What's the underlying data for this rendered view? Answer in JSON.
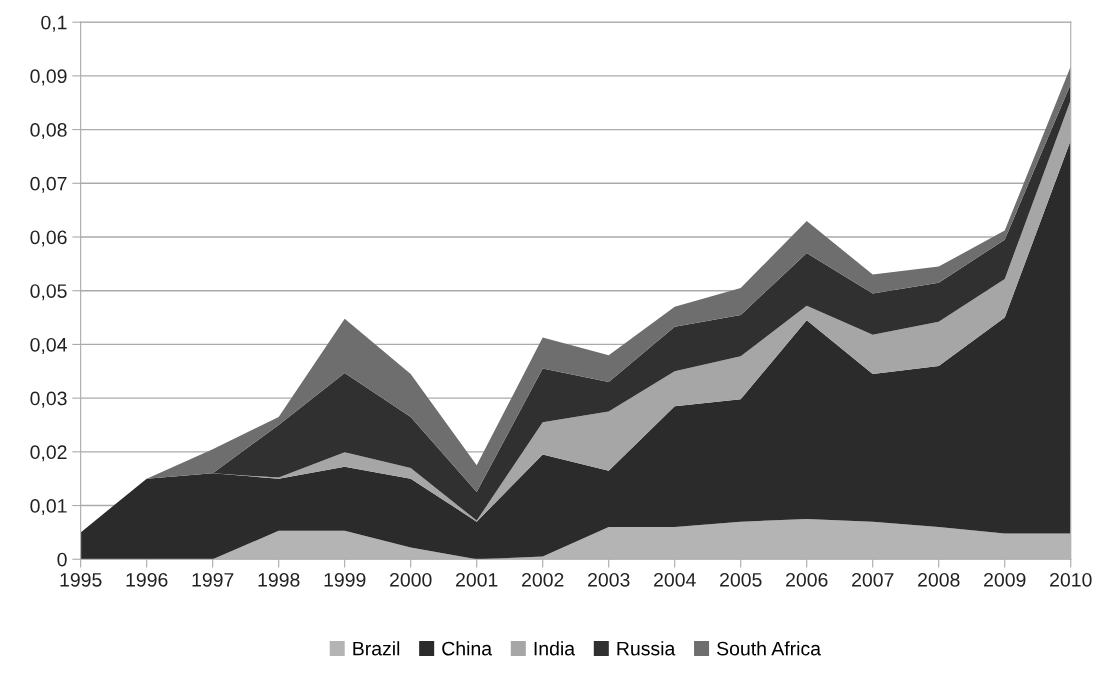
{
  "chart_data": {
    "type": "area",
    "stacked": true,
    "categories": [
      "1995",
      "1996",
      "1997",
      "1998",
      "1999",
      "2000",
      "2001",
      "2002",
      "2003",
      "2004",
      "2005",
      "2006",
      "2007",
      "2008",
      "2009",
      "2010"
    ],
    "series": [
      {
        "name": "Brazil",
        "color": "#b4b4b4",
        "values": [
          0,
          0,
          0,
          0.0053,
          0.0053,
          0.0022,
          0,
          0.0005,
          0.006,
          0.006,
          0.007,
          0.0075,
          0.007,
          0.006,
          0.0048,
          0.0048
        ]
      },
      {
        "name": "China",
        "color": "#2b2b2b",
        "values": [
          0.005,
          0.015,
          0.016,
          0.0097,
          0.0119,
          0.0128,
          0.007,
          0.019,
          0.0105,
          0.0225,
          0.0228,
          0.037,
          0.0275,
          0.03,
          0.0402,
          0.0732
        ]
      },
      {
        "name": "India",
        "color": "#a6a6a6",
        "values": [
          0,
          0,
          0,
          0.0002,
          0.0027,
          0.002,
          0.0002,
          0.006,
          0.011,
          0.0065,
          0.008,
          0.0027,
          0.0073,
          0.0082,
          0.0072,
          0.0075
        ]
      },
      {
        "name": "Russia",
        "color": "#303030",
        "values": [
          0,
          0,
          0,
          0.0098,
          0.0148,
          0.0095,
          0.0053,
          0.01,
          0.0055,
          0.0083,
          0.0077,
          0.0098,
          0.0077,
          0.0073,
          0.0073,
          0.003
        ]
      },
      {
        "name": "South Africa",
        "color": "#6e6e6e",
        "values": [
          0,
          0,
          0.0045,
          0.0015,
          0.0101,
          0.008,
          0.005,
          0.0058,
          0.005,
          0.0037,
          0.005,
          0.006,
          0.0035,
          0.003,
          0.0017,
          0.0033
        ]
      }
    ],
    "ylim": [
      0,
      0.1
    ],
    "yticks": [
      {
        "value": 0,
        "label": "0"
      },
      {
        "value": 0.01,
        "label": "0,01"
      },
      {
        "value": 0.02,
        "label": "0,02"
      },
      {
        "value": 0.03,
        "label": "0,03"
      },
      {
        "value": 0.04,
        "label": "0,04"
      },
      {
        "value": 0.05,
        "label": "0,05"
      },
      {
        "value": 0.06,
        "label": "0,06"
      },
      {
        "value": 0.07,
        "label": "0,07"
      },
      {
        "value": 0.08,
        "label": "0,08"
      },
      {
        "value": 0.09,
        "label": "0,09"
      },
      {
        "value": 0.1,
        "label": "0,1"
      }
    ],
    "grid": "y",
    "legend": "bottom"
  }
}
